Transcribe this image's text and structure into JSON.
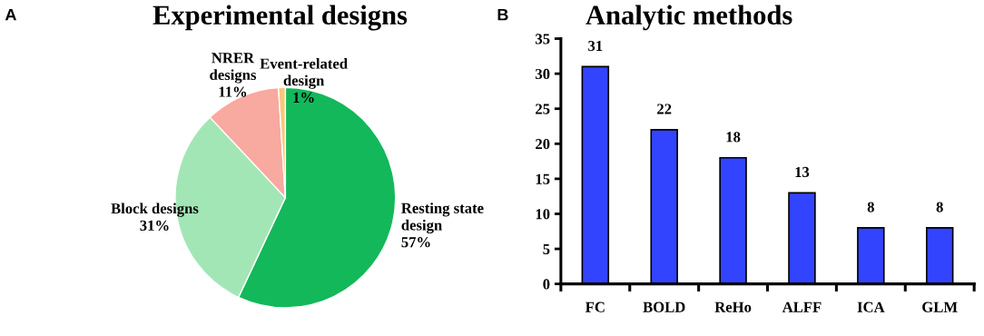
{
  "chart_data": [
    {
      "type": "pie",
      "title": "Experimental designs",
      "annotations": [
        "A"
      ],
      "categories": [
        "Resting state\ndesign",
        "Block designs",
        "NRER\ndesigns",
        "Event-related\ndesign"
      ],
      "values": [
        57,
        31,
        11,
        1
      ],
      "value_labels": [
        "57%",
        "31%",
        "11%",
        "1%"
      ],
      "colors": [
        "#13b85a",
        "#a3e6b6",
        "#f8a9a0",
        "#f9c77a"
      ]
    },
    {
      "type": "bar",
      "title": "Analytic methods",
      "annotations": [
        "B"
      ],
      "categories": [
        "FC",
        "BOLD",
        "ReHo",
        "ALFF",
        "ICA",
        "GLM"
      ],
      "values": [
        31,
        22,
        18,
        13,
        8,
        8
      ],
      "color": "#3344ff",
      "ylim": [
        0,
        35
      ],
      "yticks": [
        0,
        5,
        10,
        15,
        20,
        25,
        30,
        35
      ],
      "data_labels": true,
      "grid": false,
      "legend": false
    }
  ]
}
